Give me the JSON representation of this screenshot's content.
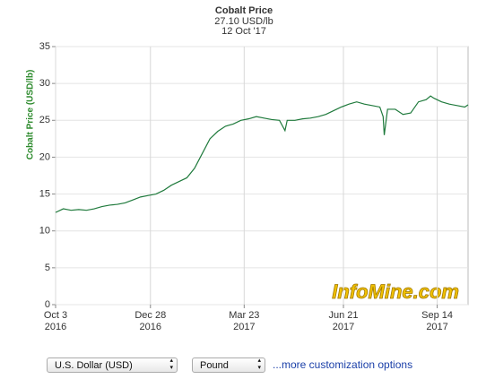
{
  "chart_data": {
    "type": "line",
    "title": "Cobalt Price",
    "subtitle": "27.10 USD/lb",
    "date": "12 Oct '17",
    "y_label": "Cobalt Price (USD/lb)",
    "color": "#1f7a3c",
    "grid": true,
    "x": [
      "2016-10-03",
      "2016-10-10",
      "2016-10-17",
      "2016-10-24",
      "2016-10-31",
      "2016-11-07",
      "2016-11-14",
      "2016-11-21",
      "2016-11-28",
      "2016-12-05",
      "2016-12-12",
      "2016-12-19",
      "2016-12-26",
      "2017-01-02",
      "2017-01-09",
      "2017-01-16",
      "2017-01-23",
      "2017-01-30",
      "2017-02-06",
      "2017-02-13",
      "2017-02-20",
      "2017-02-27",
      "2017-03-06",
      "2017-03-13",
      "2017-03-20",
      "2017-03-27",
      "2017-04-03",
      "2017-04-10",
      "2017-04-17",
      "2017-04-24",
      "2017-04-29",
      "2017-05-01",
      "2017-05-08",
      "2017-05-15",
      "2017-05-22",
      "2017-05-29",
      "2017-06-05",
      "2017-06-12",
      "2017-06-19",
      "2017-06-26",
      "2017-07-03",
      "2017-07-10",
      "2017-07-17",
      "2017-07-24",
      "2017-07-27",
      "2017-07-28",
      "2017-07-31",
      "2017-08-07",
      "2017-08-14",
      "2017-08-21",
      "2017-08-28",
      "2017-09-04",
      "2017-09-08",
      "2017-09-11",
      "2017-09-18",
      "2017-09-25",
      "2017-10-02",
      "2017-10-09",
      "2017-10-12"
    ],
    "values": [
      12.5,
      13.0,
      12.8,
      12.9,
      12.8,
      13.0,
      13.3,
      13.5,
      13.6,
      13.8,
      14.2,
      14.6,
      14.8,
      15.0,
      15.5,
      16.2,
      16.7,
      17.2,
      18.5,
      20.5,
      22.5,
      23.5,
      24.2,
      24.5,
      25.0,
      25.2,
      25.5,
      25.3,
      25.1,
      25.0,
      23.6,
      25.0,
      25.0,
      25.2,
      25.3,
      25.5,
      25.8,
      26.3,
      26.8,
      27.2,
      27.5,
      27.2,
      27.0,
      26.8,
      25.5,
      23.0,
      26.5,
      26.5,
      25.8,
      26.0,
      27.5,
      27.8,
      28.3,
      28.0,
      27.5,
      27.2,
      27.0,
      26.8,
      27.1
    ],
    "xlim": [
      "2016-10-03",
      "2017-10-12"
    ],
    "xticks": [
      {
        "value": "2016-10-03",
        "label": [
          "Oct 3",
          "2016"
        ]
      },
      {
        "value": "2016-12-28",
        "label": [
          "Dec 28",
          "2016"
        ]
      },
      {
        "value": "2017-03-23",
        "label": [
          "Mar 23",
          "2017"
        ]
      },
      {
        "value": "2017-06-21",
        "label": [
          "Jun 21",
          "2017"
        ]
      },
      {
        "value": "2017-09-14",
        "label": [
          "Sep 14",
          "2017"
        ]
      }
    ],
    "ylim": [
      0,
      35
    ],
    "yticks": [
      0,
      5,
      10,
      15,
      20,
      25,
      30,
      35
    ],
    "watermark": "InfoMine.com"
  },
  "controls": {
    "currency": "U.S. Dollar (USD)",
    "unit": "Pound",
    "link": "...more customization options"
  }
}
